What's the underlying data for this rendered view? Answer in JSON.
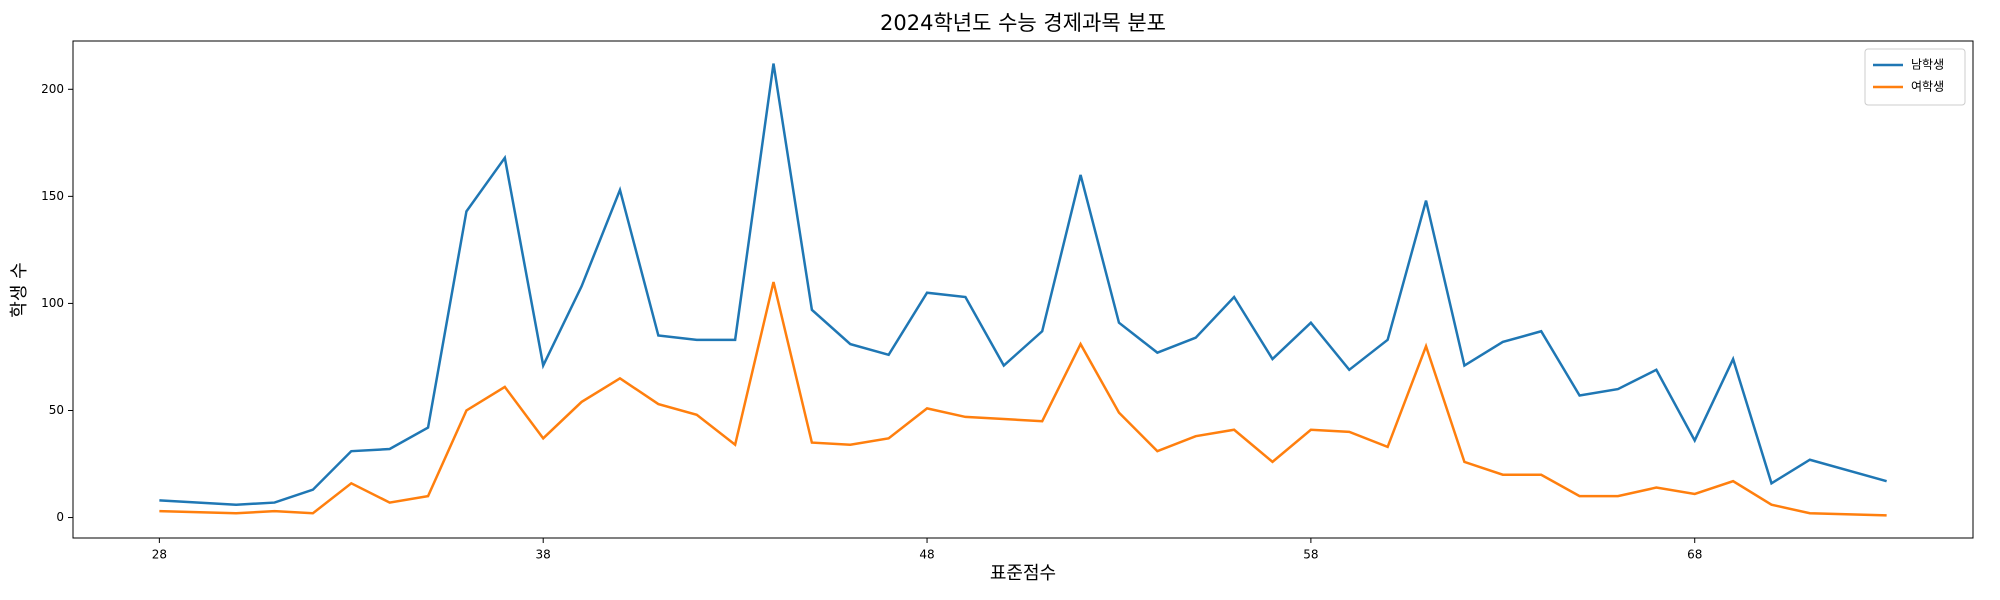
{
  "chart_data": {
    "type": "line",
    "title": "2024학년도 수능 경제과목 분포",
    "xlabel": "표준점수",
    "ylabel": "학생 수",
    "x": [
      28,
      30,
      31,
      32,
      33,
      34,
      35,
      36,
      37,
      38,
      39,
      40,
      41,
      42,
      43,
      44,
      45,
      46,
      47,
      48,
      49,
      50,
      51,
      52,
      53,
      54,
      55,
      56,
      57,
      58,
      59,
      60,
      61,
      62,
      63,
      64,
      65,
      66,
      67,
      68,
      69,
      70,
      71,
      73
    ],
    "series": [
      {
        "name": "남학생",
        "color": "#1f77b4",
        "values": [
          8,
          6,
          7,
          13,
          31,
          32,
          42,
          143,
          168,
          71,
          108,
          153,
          85,
          83,
          83,
          212,
          97,
          81,
          76,
          105,
          103,
          71,
          87,
          160,
          91,
          77,
          84,
          103,
          74,
          91,
          69,
          83,
          148,
          71,
          82,
          87,
          57,
          60,
          69,
          36,
          74,
          16,
          27,
          17
        ]
      },
      {
        "name": "여학생",
        "color": "#ff7f0e",
        "values": [
          3,
          2,
          3,
          2,
          16,
          7,
          10,
          50,
          61,
          37,
          54,
          65,
          53,
          48,
          34,
          110,
          35,
          34,
          37,
          51,
          47,
          46,
          45,
          81,
          49,
          31,
          38,
          41,
          26,
          41,
          40,
          33,
          80,
          26,
          20,
          20,
          10,
          10,
          14,
          11,
          17,
          6,
          2,
          1
        ]
      }
    ],
    "xlim": [
      25.75,
      75.25
    ],
    "ylim": [
      -9.55,
      222.55
    ],
    "xticks": [
      28,
      38,
      48,
      58,
      68
    ],
    "yticks": [
      0,
      50,
      100,
      150,
      200
    ],
    "legend": "upper right"
  }
}
